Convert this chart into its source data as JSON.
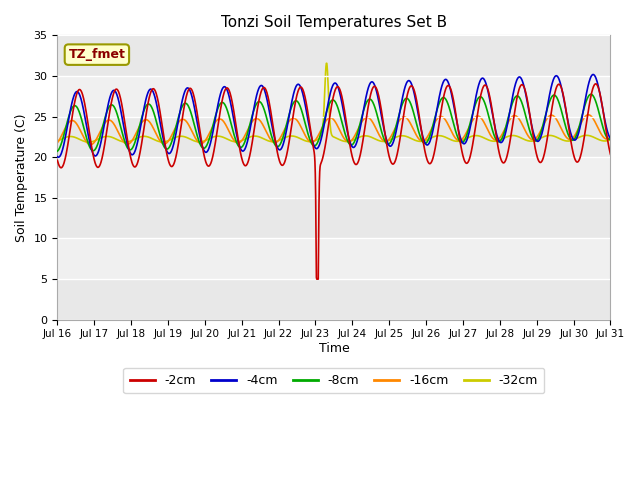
{
  "title": "Tonzi Soil Temperatures Set B",
  "xlabel": "Time",
  "ylabel": "Soil Temperature (C)",
  "xlim": [
    0,
    15
  ],
  "ylim": [
    0,
    35
  ],
  "yticks": [
    0,
    5,
    10,
    15,
    20,
    25,
    30,
    35
  ],
  "xtick_labels": [
    "Jul 16",
    "Jul 17",
    "Jul 18",
    "Jul 19",
    "Jul 20",
    "Jul 21",
    "Jul 22",
    "Jul 23",
    "Jul 24",
    "Jul 25",
    "Jul 26",
    "Jul 27",
    "Jul 28",
    "Jul 29",
    "Jul 30",
    "Jul 31"
  ],
  "bg_outer": "#ffffff",
  "bg_plot_light": "#f0f0f0",
  "bg_plot_dark": "#e0e0e0",
  "series_colors": [
    "#cc0000",
    "#0000cc",
    "#00aa00",
    "#ff8800",
    "#cccc00"
  ],
  "series_labels": [
    "-2cm",
    "-4cm",
    "-8cm",
    "-16cm",
    "-32cm"
  ],
  "line_width": 1.2,
  "annotation_text": "TZ_fmet",
  "annotation_facecolor": "#ffffcc",
  "annotation_edgecolor": "#999900",
  "annotation_textcolor": "#8b0000",
  "grid_color": "#ffffff",
  "grid_linewidth": 1.0
}
